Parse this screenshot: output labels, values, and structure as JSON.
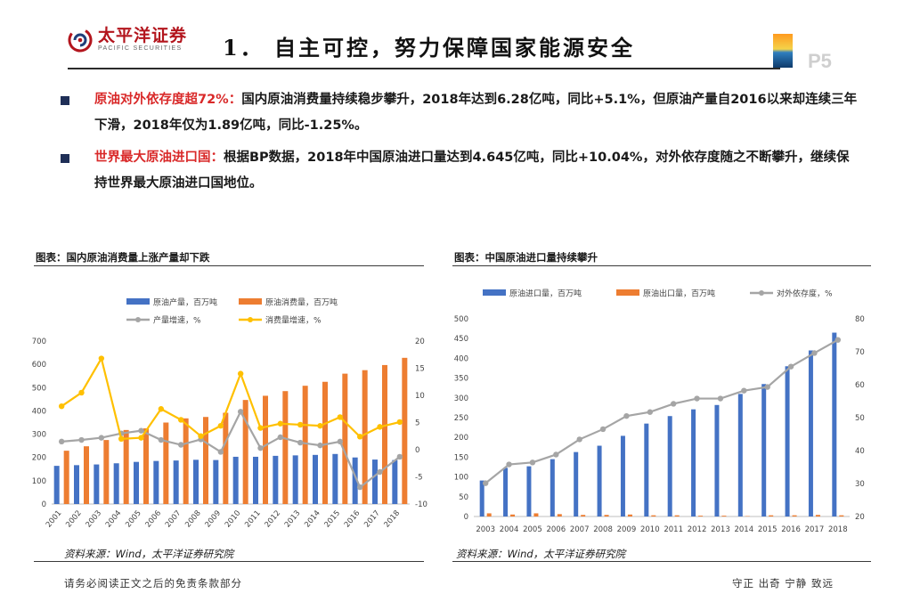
{
  "header": {
    "logo_cn": "太平洋证券",
    "logo_en": "PACIFIC SECURITIES",
    "title": "1．  自主可控，努力保障国家能源安全",
    "page": "P5"
  },
  "bullets": [
    {
      "highlight": "原油对外依存度超72%：",
      "text": "国内原油消费量持续稳步攀升，2018年达到6.28亿吨，同比+5.1%，但原油产量自2016以来却连续三年下滑，2018年仅为1.89亿吨，同比-1.25%。"
    },
    {
      "highlight": "世界最大原油进口国：",
      "text": "根据BP数据，2018年中国原油进口量达到4.645亿吨，同比+10.04%，对外依存度随之不断攀升，继续保持世界最大原油进口国地位。"
    }
  ],
  "figures": {
    "left_title": "图表：国内原油消费量上涨产量却下跌",
    "right_title": "图表：中国原油进口量持续攀升",
    "left_source": "资料来源：Wind，太平洋证券研究院",
    "right_source": "资料来源：Wind，太平洋证券研究院"
  },
  "footer": {
    "left": "请务必阅读正文之后的免责条款部分",
    "right": "守正  出奇  宁静  致远"
  },
  "colors": {
    "blue": "#4472c4",
    "orange": "#ed7d31",
    "gray": "#a5a5a5",
    "yellow": "#ffc000",
    "red": "#d92929",
    "brand": "#b3151d"
  },
  "chart_data": [
    {
      "type": "bar",
      "categories": [
        "2001",
        "2002",
        "2003",
        "2004",
        "2005",
        "2006",
        "2007",
        "2008",
        "2009",
        "2010",
        "2011",
        "2012",
        "2013",
        "2014",
        "2015",
        "2016",
        "2017",
        "2018"
      ],
      "series": [
        {
          "name": "原油产量，百万吨",
          "kind": "bar",
          "axis": "left",
          "color": "#4472c4",
          "values": [
            164,
            167,
            170,
            175,
            181,
            185,
            187,
            190,
            189,
            203,
            203,
            207,
            209,
            211,
            215,
            200,
            191,
            189
          ]
        },
        {
          "name": "原油消费量，百万吨",
          "kind": "bar",
          "axis": "left",
          "color": "#ed7d31",
          "values": [
            229,
            248,
            275,
            318,
            325,
            350,
            368,
            374,
            392,
            447,
            465,
            485,
            508,
            525,
            560,
            575,
            597,
            628
          ]
        },
        {
          "name": "产量增速，%",
          "kind": "line",
          "axis": "right",
          "color": "#a5a5a5",
          "values": [
            1.5,
            1.8,
            2.2,
            3.0,
            3.5,
            1.8,
            0.9,
            1.9,
            -0.4,
            7.0,
            0.3,
            2.3,
            1.3,
            0.8,
            1.5,
            -6.9,
            -4.1,
            -1.3
          ]
        },
        {
          "name": "消费量增速，%",
          "kind": "line",
          "axis": "right",
          "color": "#ffc000",
          "values": [
            8.0,
            10.5,
            16.8,
            2.0,
            2.2,
            7.5,
            5.5,
            2.5,
            4.4,
            14.0,
            4.0,
            4.8,
            4.6,
            4.4,
            6.0,
            2.4,
            4.2,
            5.1
          ]
        }
      ],
      "ylim": [
        0,
        700
      ],
      "yticks": [
        0,
        100,
        200,
        300,
        400,
        500,
        600,
        700
      ],
      "y2lim": [
        -10,
        20
      ],
      "y2ticks": [
        -10,
        -5,
        0,
        5,
        10,
        15,
        20
      ],
      "legend": "top",
      "grid": false
    },
    {
      "type": "bar",
      "categories": [
        "2003",
        "2004",
        "2005",
        "2006",
        "2007",
        "2008",
        "2009",
        "2010",
        "2011",
        "2012",
        "2013",
        "2014",
        "2015",
        "2016",
        "2017",
        "2018"
      ],
      "series": [
        {
          "name": "原油进口量，百万吨",
          "kind": "bar",
          "axis": "left",
          "color": "#4472c4",
          "values": [
            91,
            123,
            127,
            145,
            163,
            179,
            204,
            235,
            254,
            271,
            282,
            310,
            335,
            380,
            420,
            465
          ]
        },
        {
          "name": "原油出口量，百万吨",
          "kind": "bar",
          "axis": "left",
          "color": "#ed7d31",
          "values": [
            8,
            5,
            8,
            6,
            4,
            4,
            5,
            3,
            3,
            2,
            2,
            1,
            3,
            3,
            4,
            3
          ]
        },
        {
          "name": "对外依存度，%",
          "kind": "line",
          "axis": "right",
          "color": "#a5a5a5",
          "values": [
            30.1,
            35.8,
            36.4,
            38.8,
            43.4,
            46.5,
            50.5,
            51.7,
            54.2,
            55.8,
            55.8,
            58.2,
            59.3,
            65.5,
            69.6,
            73.6
          ]
        }
      ],
      "ylim": [
        0,
        500
      ],
      "yticks": [
        0,
        50,
        100,
        150,
        200,
        250,
        300,
        350,
        400,
        450,
        500
      ],
      "y2lim": [
        20,
        80
      ],
      "y2ticks": [
        20,
        30,
        40,
        50,
        60,
        70,
        80
      ],
      "legend": "top",
      "grid": false
    }
  ]
}
